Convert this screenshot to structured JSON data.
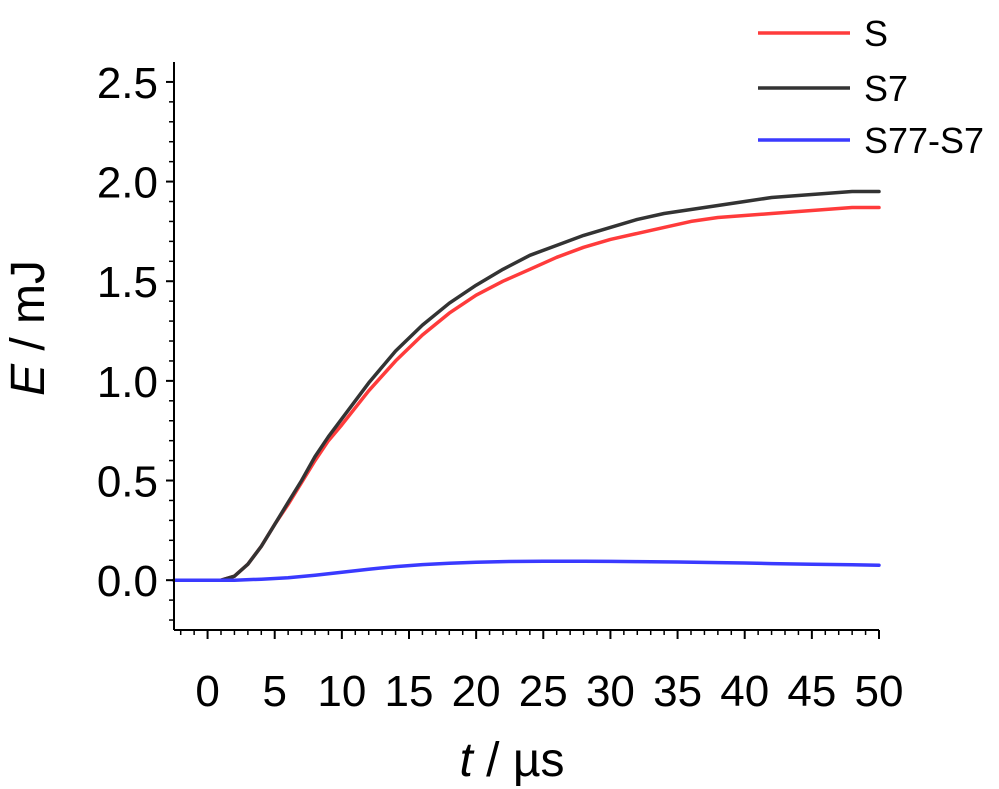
{
  "chart_data": {
    "type": "line",
    "xlabel_var": "t",
    "xlabel_unit": " / µs",
    "ylabel_var": "E",
    "ylabel_unit": " / mJ",
    "xlim": [
      -2.5,
      50
    ],
    "ylim": [
      -0.25,
      2.6
    ],
    "xticks": [
      0,
      5,
      10,
      15,
      20,
      25,
      30,
      35,
      40,
      45,
      50
    ],
    "yticks": [
      "0.0",
      "0.5",
      "1.0",
      "1.5",
      "2.0",
      "2.5"
    ],
    "legend_position": "top-right",
    "series": [
      {
        "name": "S",
        "color": "#ff3b3b",
        "x": [
          -2.5,
          0,
          1,
          2,
          3,
          4,
          5,
          6,
          7,
          8,
          9,
          10,
          12,
          14,
          16,
          18,
          20,
          22,
          24,
          26,
          28,
          30,
          32,
          34,
          36,
          38,
          40,
          42,
          44,
          46,
          48,
          50
        ],
        "y": [
          0,
          0,
          0,
          0.02,
          0.08,
          0.17,
          0.28,
          0.38,
          0.49,
          0.6,
          0.7,
          0.78,
          0.95,
          1.1,
          1.23,
          1.34,
          1.43,
          1.5,
          1.56,
          1.62,
          1.67,
          1.71,
          1.74,
          1.77,
          1.8,
          1.82,
          1.83,
          1.84,
          1.85,
          1.86,
          1.87,
          1.87
        ]
      },
      {
        "name": "S7",
        "color": "#333333",
        "x": [
          -2.5,
          0,
          1,
          2,
          3,
          4,
          5,
          6,
          7,
          8,
          9,
          10,
          12,
          14,
          16,
          18,
          20,
          22,
          24,
          26,
          28,
          30,
          32,
          34,
          36,
          38,
          40,
          42,
          44,
          46,
          48,
          50
        ],
        "y": [
          0,
          0,
          0,
          0.02,
          0.08,
          0.17,
          0.28,
          0.39,
          0.5,
          0.62,
          0.72,
          0.81,
          0.99,
          1.15,
          1.28,
          1.39,
          1.48,
          1.56,
          1.63,
          1.68,
          1.73,
          1.77,
          1.81,
          1.84,
          1.86,
          1.88,
          1.9,
          1.92,
          1.93,
          1.94,
          1.95,
          1.95
        ]
      },
      {
        "name": "S77-S7",
        "color": "#3a3aff",
        "x": [
          -2.5,
          0,
          2,
          4,
          6,
          8,
          10,
          12,
          14,
          16,
          18,
          20,
          22,
          25,
          28,
          30,
          32,
          35,
          38,
          40,
          42,
          45,
          48,
          50
        ],
        "y": [
          0,
          0,
          0,
          0.005,
          0.012,
          0.025,
          0.04,
          0.055,
          0.068,
          0.078,
          0.085,
          0.09,
          0.093,
          0.095,
          0.095,
          0.094,
          0.093,
          0.091,
          0.088,
          0.086,
          0.083,
          0.08,
          0.077,
          0.075
        ]
      }
    ]
  }
}
